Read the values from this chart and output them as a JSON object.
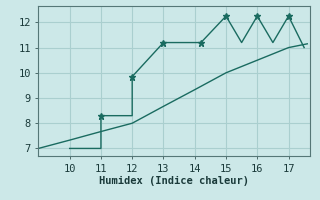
{
  "xlabel": "Humidex (Indice chaleur)",
  "ylabel": "",
  "bg_color": "#cce8e8",
  "line_color": "#1a6b60",
  "grid_color": "#aacfcf",
  "xlim": [
    9.0,
    17.7
  ],
  "ylim": [
    6.7,
    12.65
  ],
  "xticks": [
    10,
    11,
    12,
    13,
    14,
    15,
    16,
    17
  ],
  "yticks": [
    7,
    8,
    9,
    10,
    11,
    12
  ],
  "line1_x": [
    9.0,
    10.0,
    11.0,
    12.0,
    13.0,
    14.0,
    15.0,
    16.0,
    17.0,
    17.6
  ],
  "line1_y": [
    7.0,
    7.33,
    7.67,
    8.0,
    8.67,
    9.33,
    10.0,
    10.5,
    11.0,
    11.15
  ],
  "line2_x": [
    10.0,
    10.5,
    11.0,
    11.0,
    12.0,
    12.0,
    13.0,
    14.2,
    14.2,
    15.0,
    15.5,
    16.0,
    16.5,
    17.0,
    17.5
  ],
  "line2_y": [
    7.0,
    7.0,
    7.0,
    8.3,
    8.3,
    9.85,
    11.2,
    11.2,
    11.2,
    12.25,
    11.2,
    12.25,
    11.2,
    12.25,
    11.0
  ],
  "marker_x2": [
    11.0,
    12.0,
    13.0,
    14.2,
    15.0,
    16.0,
    17.0
  ],
  "marker_y2": [
    8.3,
    9.85,
    11.2,
    11.2,
    12.25,
    12.25,
    12.25
  ]
}
